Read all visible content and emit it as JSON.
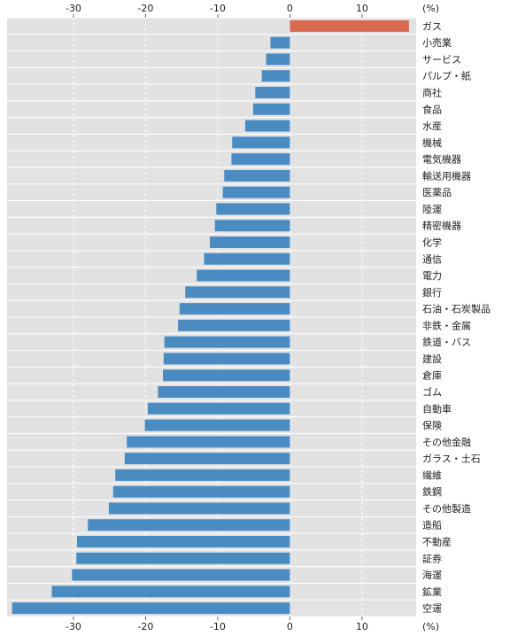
{
  "chart_data": {
    "type": "bar",
    "orientation": "horizontal",
    "unit_label": "(%)",
    "categories": [
      "ガス",
      "小売業",
      "サービス",
      "パルプ・紙",
      "商社",
      "食品",
      "水産",
      "機械",
      "電気機器",
      "輸送用機器",
      "医薬品",
      "陸運",
      "精密機器",
      "化学",
      "通信",
      "電力",
      "銀行",
      "石油・石炭製品",
      "非鉄・金属",
      "鉄道・バス",
      "建設",
      "倉庫",
      "ゴム",
      "自動車",
      "保険",
      "その他金融",
      "ガラス・土石",
      "繊維",
      "鉄鋼",
      "その他製造",
      "造船",
      "不動産",
      "証券",
      "海運",
      "鉱業",
      "空運"
    ],
    "values": [
      16.5,
      -2.7,
      -3.3,
      -3.9,
      -4.8,
      -5.1,
      -6.2,
      -8.0,
      -8.1,
      -9.1,
      -9.3,
      -10.2,
      -10.4,
      -11.1,
      -11.9,
      -12.9,
      -14.5,
      -15.3,
      -15.5,
      -17.4,
      -17.5,
      -17.6,
      -18.3,
      -19.7,
      -20.1,
      -22.6,
      -22.9,
      -24.2,
      -24.5,
      -25.1,
      -28.0,
      -29.5,
      -29.6,
      -30.2,
      -33.0,
      -38.5
    ],
    "highlight_index": 0,
    "xlim": [
      -39.2,
      17.5
    ],
    "xticks": [
      -30,
      -20,
      -10,
      0,
      10
    ],
    "xtick_labels": [
      "-30",
      "-20",
      "-10",
      "0",
      "10"
    ],
    "grid": true,
    "colors": {
      "background": "#e2e2e2",
      "negative": "#4a8cc2",
      "positive": "#d86a50",
      "gridline": "#ffffff",
      "text": "#222222"
    }
  }
}
